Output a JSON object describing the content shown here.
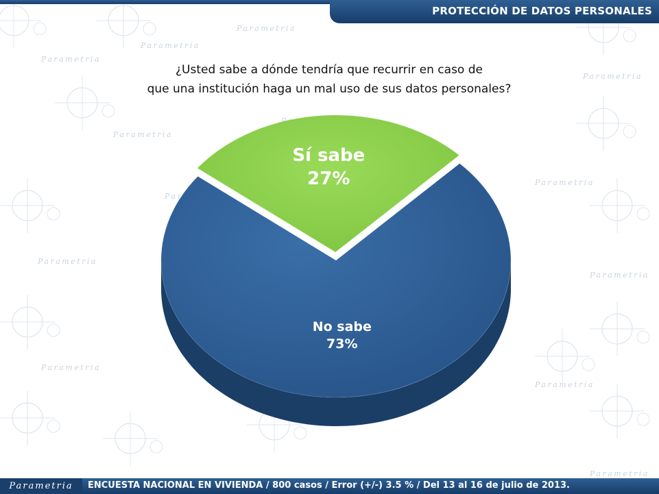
{
  "header": {
    "title": "PROTECCIÓN DE DATOS PERSONALES"
  },
  "question": {
    "line1": "¿Usted sabe a dónde tendría que recurrir en caso de",
    "line2": "que una institución haga un mal uso de sus datos personales?"
  },
  "chart_data": {
    "type": "pie",
    "title": "¿Usted sabe a dónde tendría que recurrir en caso de que una institución haga un mal uso de sus datos personales?",
    "slices": [
      {
        "label": "No sabe",
        "value": 73,
        "display": "73%",
        "color": "#2e5f95"
      },
      {
        "label": "Sí sabe",
        "value": 27,
        "display": "27%",
        "color": "#8fd14f"
      }
    ]
  },
  "watermark": {
    "brand": "Parametria"
  },
  "footer": {
    "brand": "Parametria",
    "text": "ENCUESTA NACIONAL EN VIVIENDA / 800 casos / Error (+/-) 3.5 % / Del 13 al 16 de julio de 2013."
  },
  "colors": {
    "header_bg": "#1f4a7a",
    "slice_no": "#2e5f95",
    "slice_si": "#8fd14f"
  }
}
